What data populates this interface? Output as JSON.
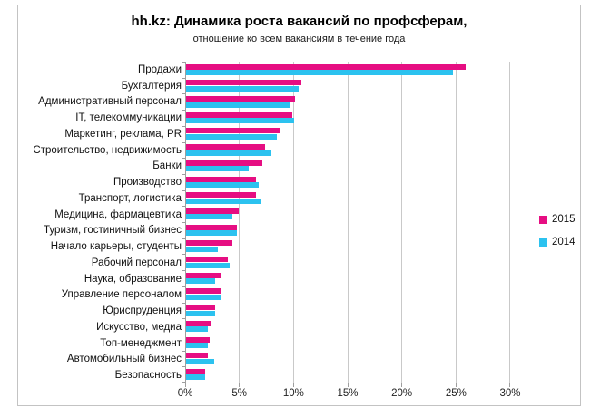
{
  "title": "hh.kz: Динамика роста вакансий по профсферам,",
  "subtitle": "отношение ко всем вакансиям в течение года",
  "colors": {
    "series_2015": "#E60E82",
    "series_2014": "#2CC2EF",
    "gridline": "#C9C9C9",
    "axis": "#9E9E9E",
    "frame_border": "#C3C3C3",
    "background": "#FFFFFF"
  },
  "legend": {
    "position": "right",
    "items": [
      {
        "label": "2015",
        "color": "#E60E82"
      },
      {
        "label": "2014",
        "color": "#2CC2EF"
      }
    ]
  },
  "chart_data": {
    "type": "bar",
    "orientation": "horizontal",
    "title": "hh.kz: Динамика роста вакансий по профсферам,",
    "subtitle": "отношение ко всем вакансиям в течение года",
    "xlabel": "",
    "ylabel": "",
    "xlim": [
      0,
      30
    ],
    "grid": true,
    "legend_position": "right",
    "x_ticks": [
      {
        "value": 0,
        "label": "0%"
      },
      {
        "value": 5,
        "label": "5%"
      },
      {
        "value": 10,
        "label": "10%"
      },
      {
        "value": 15,
        "label": "15%"
      },
      {
        "value": 20,
        "label": "20%"
      },
      {
        "value": 25,
        "label": "25%"
      },
      {
        "value": 30,
        "label": "30%"
      }
    ],
    "categories": [
      "Продажи",
      "Бухгалтерия",
      "Административный персонал",
      "IT, телекоммуникации",
      "Маркетинг, реклама, PR",
      "Строительство, недвижимость",
      "Банки",
      "Производство",
      "Транспорт, логистика",
      "Медицина, фармацевтика",
      "Туризм, гостиничный бизнес",
      "Начало карьеры, студенты",
      "Рабочий персонал",
      "Наука, образование",
      "Управление персоналом",
      "Юриспруденция",
      "Искусство, медиа",
      "Топ-менеджмент",
      "Автомобильный бизнес",
      "Безопасность"
    ],
    "series": [
      {
        "name": "2015",
        "color": "#E60E82",
        "values": [
          25.9,
          10.7,
          10.1,
          9.8,
          8.7,
          7.3,
          7.1,
          6.5,
          6.5,
          4.9,
          4.7,
          4.3,
          3.9,
          3.3,
          3.2,
          2.7,
          2.3,
          2.2,
          2.0,
          1.8
        ]
      },
      {
        "name": "2014",
        "color": "#2CC2EF",
        "values": [
          24.7,
          10.4,
          9.7,
          10.0,
          8.4,
          7.9,
          5.8,
          6.7,
          7.0,
          4.3,
          4.7,
          2.9,
          4.0,
          2.7,
          3.2,
          2.7,
          2.0,
          2.0,
          2.6,
          1.8
        ]
      }
    ]
  }
}
